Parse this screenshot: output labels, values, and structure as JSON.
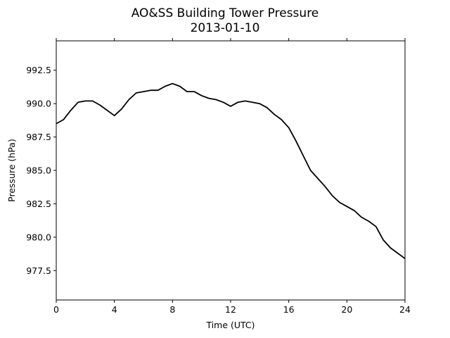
{
  "chart_data": {
    "type": "line",
    "title": "AO&SS Building Tower Pressure",
    "subtitle": "2013-01-10",
    "xlabel": "Time (UTC)",
    "ylabel": "Pressure (hPa)",
    "xlim": [
      0,
      24
    ],
    "ylim": [
      975.3,
      994.7
    ],
    "xticks": [
      0,
      4,
      8,
      12,
      16,
      20,
      24
    ],
    "yticks": [
      977.5,
      980.0,
      982.5,
      985.0,
      987.5,
      990.0,
      992.5
    ],
    "xtick_labels": [
      "0",
      "4",
      "8",
      "12",
      "16",
      "20",
      "24"
    ],
    "ytick_labels": [
      "977.5",
      "980.0",
      "982.5",
      "985.0",
      "987.5",
      "990.0",
      "992.5"
    ],
    "grid": false,
    "line_color": "#000000",
    "series": [
      {
        "x": [
          0,
          0.5,
          1.0,
          1.5,
          2.0,
          2.5,
          3.0,
          3.5,
          4.0,
          4.5,
          5.0,
          5.5,
          6.0,
          6.5,
          7.0,
          7.5,
          8.0,
          8.5,
          9.0,
          9.5,
          10.0,
          10.5,
          11.0,
          11.5,
          12.0,
          12.5,
          13.0,
          13.5,
          14.0,
          14.5,
          15.0,
          15.5,
          16.0,
          16.5,
          17.0,
          17.5,
          18.0,
          18.5,
          19.0,
          19.5,
          20.0,
          20.5,
          21.0,
          21.5,
          22.0,
          22.5,
          23.0,
          23.5,
          24.0
        ],
        "y": [
          988.5,
          988.8,
          989.5,
          990.1,
          990.2,
          990.2,
          989.9,
          989.5,
          989.1,
          989.6,
          990.3,
          990.8,
          990.9,
          991.0,
          991.0,
          991.3,
          991.5,
          991.3,
          990.9,
          990.9,
          990.6,
          990.4,
          990.3,
          990.1,
          989.8,
          990.1,
          990.2,
          990.1,
          990.0,
          989.7,
          989.2,
          988.8,
          988.2,
          987.2,
          986.1,
          985.0,
          984.4,
          983.8,
          983.1,
          982.6,
          982.3,
          982.0,
          981.5,
          981.2,
          980.8,
          979.8,
          979.2,
          978.8,
          978.4
        ]
      }
    ]
  }
}
